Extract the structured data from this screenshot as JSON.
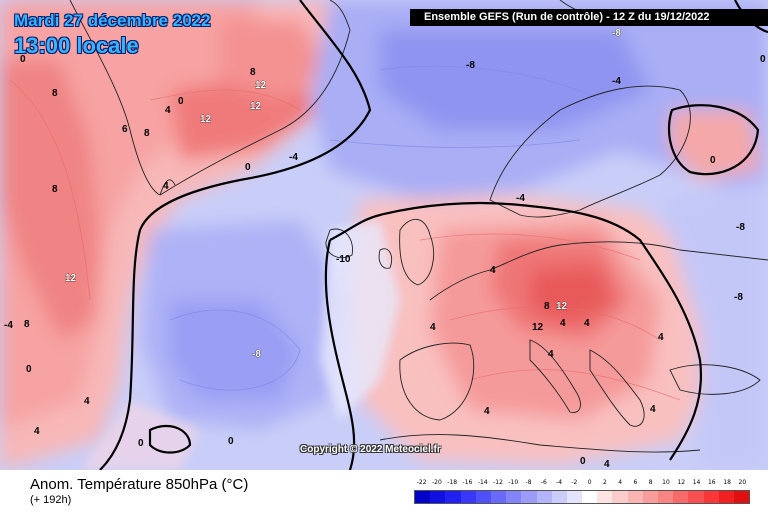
{
  "header": {
    "date": "Mardi 27 décembre 2022",
    "time": "13:00 locale",
    "run": "Ensemble GEFS  (Run de contrôle)  -  12 Z du 19/12/2022"
  },
  "copyright": "Copyright © 2022 Meteociel.fr",
  "footer": {
    "title": "Anom. Température 850hPa (°C)",
    "forecast": "(+ 192h)"
  },
  "legend": {
    "values": [
      "-22",
      "-20",
      "-18",
      "-16",
      "-14",
      "-12",
      "-10",
      "-8",
      "-6",
      "-4",
      "-2",
      "0",
      "2",
      "4",
      "6",
      "8",
      "10",
      "12",
      "14",
      "16",
      "18",
      "20"
    ],
    "colors": [
      "#0000c8",
      "#1010e0",
      "#2020f0",
      "#3838f8",
      "#5050f8",
      "#6a6af8",
      "#8484f8",
      "#9c9cf8",
      "#b4b4fa",
      "#ccccfc",
      "#e4e4fe",
      "#ffffff",
      "#ffe4e4",
      "#fccccc",
      "#fab4b4",
      "#f89c9c",
      "#f88484",
      "#f86a6a",
      "#f85050",
      "#f83838",
      "#f02020",
      "#e01010"
    ]
  },
  "map_labels": {
    "l1": "-8",
    "l2": "0",
    "l3": "8",
    "l4": "12",
    "l5": "12",
    "l6": "8",
    "l7": "6",
    "l8": "8",
    "l9": "4",
    "l10": "12",
    "l11": "0",
    "l12": "4",
    "l13": "12",
    "l14": "8",
    "l15": "0",
    "l16": "-4",
    "l17": "-8",
    "l18": "-8",
    "l19": "-4",
    "l20": "-10",
    "l21": "-8",
    "l22": "-8",
    "l23": "4",
    "l24": "4",
    "l25": "0",
    "l26": "12",
    "l27": "8",
    "l28": "12",
    "l29": "4",
    "l30": "4",
    "l31": "4",
    "l32": "4",
    "l33": "-4",
    "l34": "0",
    "l35": "4",
    "l36": "8",
    "l37": "4",
    "l38": "0",
    "l39": "-4",
    "l40": "0",
    "l41": "4",
    "l42": "4",
    "l43": "4",
    "l44": "0",
    "l45": "0"
  }
}
